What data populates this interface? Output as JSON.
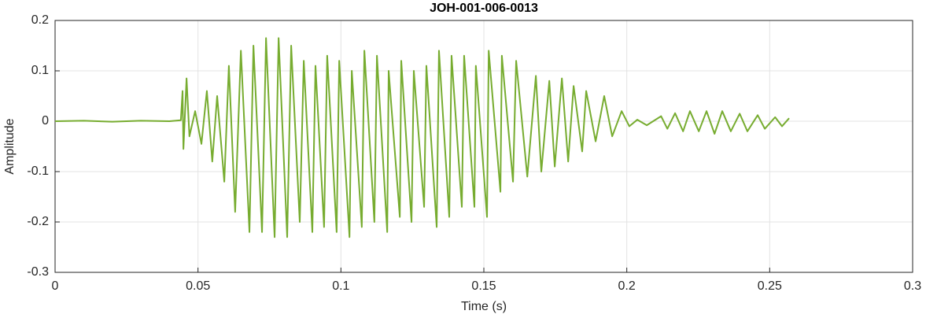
{
  "chart_data": {
    "type": "line",
    "title": "JOH-001-006-0013",
    "xlabel": "Time (s)",
    "ylabel": "Amplitude",
    "xlim": [
      0,
      0.3
    ],
    "ylim": [
      -0.3,
      0.2
    ],
    "xticks": [
      0,
      0.05,
      0.1,
      0.15,
      0.2,
      0.25,
      0.3
    ],
    "yticks": [
      -0.3,
      -0.2,
      -0.1,
      0,
      0.1,
      0.2
    ],
    "grid": true,
    "color": "#77ac30",
    "x": [
      0,
      0.01,
      0.02,
      0.03,
      0.04,
      0.044,
      0.0446,
      0.0449,
      0.046,
      0.047,
      0.049,
      0.0512,
      0.0531,
      0.055,
      0.0567,
      0.0592,
      0.0608,
      0.063,
      0.065,
      0.068,
      0.0694,
      0.0724,
      0.0738,
      0.0768,
      0.0782,
      0.0812,
      0.0826,
      0.0856,
      0.087,
      0.09,
      0.0911,
      0.0941,
      0.0952,
      0.0985,
      0.0994,
      0.103,
      0.1038,
      0.1073,
      0.1082,
      0.1117,
      0.1126,
      0.1162,
      0.1167,
      0.1206,
      0.1211,
      0.1247,
      0.1255,
      0.1291,
      0.1299,
      0.1335,
      0.1343,
      0.1379,
      0.1387,
      0.1423,
      0.1431,
      0.1467,
      0.1472,
      0.1511,
      0.1517,
      0.1558,
      0.1563,
      0.1602,
      0.1613,
      0.1652,
      0.1682,
      0.1701,
      0.1729,
      0.1748,
      0.1773,
      0.1795,
      0.1814,
      0.1844,
      0.1858,
      0.1891,
      0.1921,
      0.1949,
      0.1982,
      0.2009,
      0.2037,
      0.207,
      0.212,
      0.2142,
      0.2169,
      0.2197,
      0.2221,
      0.2252,
      0.2279,
      0.2307,
      0.2334,
      0.2364,
      0.2395,
      0.2422,
      0.2458,
      0.2483,
      0.2519,
      0.2543,
      0.2568
    ],
    "values": [
      0,
      0.001,
      -0.001,
      0.001,
      0,
      0.002,
      0.06,
      -0.055,
      0.085,
      -0.03,
      0.02,
      -0.045,
      0.06,
      -0.08,
      0.05,
      -0.12,
      0.11,
      -0.18,
      0.14,
      -0.22,
      0.15,
      -0.22,
      0.165,
      -0.23,
      0.165,
      -0.23,
      0.15,
      -0.2,
      0.12,
      -0.22,
      0.11,
      -0.21,
      0.13,
      -0.22,
      0.12,
      -0.23,
      0.1,
      -0.21,
      0.14,
      -0.2,
      0.13,
      -0.22,
      0.1,
      -0.19,
      0.12,
      -0.2,
      0.1,
      -0.17,
      0.11,
      -0.21,
      0.14,
      -0.19,
      0.13,
      -0.17,
      0.13,
      -0.17,
      0.11,
      -0.19,
      0.14,
      -0.14,
      0.13,
      -0.12,
      0.12,
      -0.11,
      0.09,
      -0.1,
      0.08,
      -0.09,
      0.085,
      -0.08,
      0.07,
      -0.06,
      0.06,
      -0.04,
      0.05,
      -0.03,
      0.02,
      -0.01,
      0.003,
      -0.008,
      0.01,
      -0.015,
      0.016,
      -0.02,
      0.02,
      -0.02,
      0.02,
      -0.025,
      0.02,
      -0.02,
      0.015,
      -0.02,
      0.012,
      -0.015,
      0.008,
      -0.01,
      0.006
    ]
  }
}
